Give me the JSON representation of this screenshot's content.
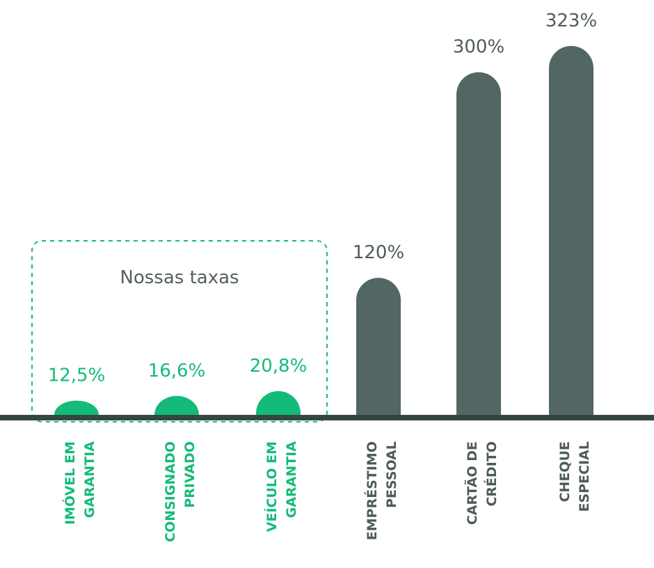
{
  "chart_data": {
    "type": "bar",
    "categories": [
      [
        "IMÓVEL EM",
        "GARANTIA"
      ],
      [
        "CONSIGNADO",
        "PRIVADO"
      ],
      [
        "VEÍCULO EM",
        "GARANTIA"
      ],
      [
        "EMPRÉSTIMO",
        "PESSOAL"
      ],
      [
        "CARTÃO DE",
        "CRÉDITO"
      ],
      [
        "CHEQUE",
        "ESPECIAL"
      ]
    ],
    "values": [
      12.5,
      16.6,
      20.8,
      120,
      300,
      323
    ],
    "value_labels": [
      "12,5%",
      "16,6%",
      "20,8%",
      "120%",
      "300%",
      "323%"
    ],
    "highlight_group": {
      "label": "Nossas taxas",
      "indices": [
        0,
        1,
        2
      ]
    },
    "title": "",
    "xlabel": "",
    "ylabel": "",
    "ylim": [
      0,
      323
    ],
    "grid": false
  },
  "colors": {
    "highlight": "#14BB78",
    "default": "#526664",
    "label_default": "#4F5B5A",
    "group_label": "#555F5E",
    "baseline": "#334644",
    "dashed_box": "#14BB78"
  }
}
